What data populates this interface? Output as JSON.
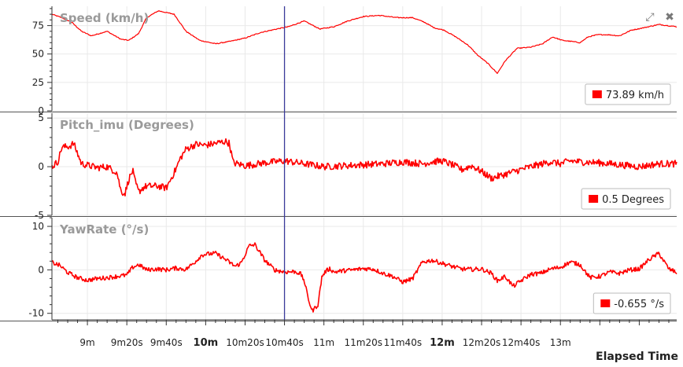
{
  "colors": {
    "series": "#ff0000",
    "cursor": "#3a3a9a",
    "axis": "#333333",
    "grid": "#e9e9e9",
    "panel_title": "#9a9a9a"
  },
  "controls": {
    "expand_icon": "expand-icon",
    "close_icon": "close-icon",
    "expand_glyph": "⤢",
    "close_glyph": "✖"
  },
  "x_axis": {
    "label": "Elapsed Time",
    "range_s": [
      522,
      839
    ],
    "ticks": [
      {
        "t": 540,
        "label": "9m",
        "major": false
      },
      {
        "t": 560,
        "label": "9m20s",
        "major": false
      },
      {
        "t": 580,
        "label": "9m40s",
        "major": false
      },
      {
        "t": 600,
        "label": "10m",
        "major": true
      },
      {
        "t": 620,
        "label": "10m20s",
        "major": false
      },
      {
        "t": 640,
        "label": "10m40s",
        "major": false
      },
      {
        "t": 660,
        "label": "11m",
        "major": false
      },
      {
        "t": 680,
        "label": "11m20s",
        "major": false
      },
      {
        "t": 700,
        "label": "11m40s",
        "major": false
      },
      {
        "t": 720,
        "label": "12m",
        "major": true
      },
      {
        "t": 740,
        "label": "12m20s",
        "major": false
      },
      {
        "t": 760,
        "label": "12m40s",
        "major": false
      },
      {
        "t": 780,
        "label": "13m",
        "major": false
      }
    ],
    "minor_step_s": 5
  },
  "cursor": {
    "t": 640
  },
  "chart_data": [
    {
      "type": "line",
      "title": "Speed (km/h)",
      "unit": "km/h",
      "readout": "73.89 km/h",
      "ylim": [
        0,
        92
      ],
      "yticks": [
        0,
        25,
        50,
        75
      ],
      "noise": 0.4,
      "x": [
        522,
        527,
        532,
        537,
        542,
        550,
        557,
        561,
        566,
        570,
        576,
        584,
        590,
        597,
        605,
        612,
        620,
        628,
        636,
        642,
        650,
        658,
        665,
        672,
        680,
        688,
        697,
        705,
        711,
        716,
        721,
        727,
        733,
        738,
        743,
        748,
        752,
        758,
        765,
        771,
        776,
        781,
        786,
        790,
        794,
        799,
        804,
        810,
        816,
        822,
        830,
        839
      ],
      "y": [
        85,
        82,
        78,
        70,
        66,
        70,
        63,
        62,
        68,
        82,
        88,
        85,
        70,
        62,
        59,
        61,
        64,
        69,
        72,
        74,
        79,
        72,
        74,
        79,
        83,
        84,
        82,
        82,
        78,
        73,
        71,
        65,
        58,
        49,
        42,
        33,
        44,
        55,
        56,
        59,
        65,
        62,
        61,
        60,
        65,
        67,
        67,
        66,
        71,
        73,
        76,
        74
      ]
    },
    {
      "type": "line",
      "title": "Pitch_imu (Degrees)",
      "unit": "Degrees",
      "readout": "0.5 Degrees",
      "ylim": [
        -5,
        5.5
      ],
      "yticks": [
        -5,
        0,
        5
      ],
      "noise": 0.35,
      "x": [
        522,
        525,
        527,
        531,
        533,
        537,
        545,
        550,
        555,
        557,
        559,
        561,
        563,
        564,
        566,
        568,
        570,
        576,
        580,
        585,
        587,
        590,
        595,
        600,
        605,
        610,
        612,
        614,
        620,
        630,
        640,
        650,
        660,
        670,
        680,
        690,
        700,
        710,
        715,
        720,
        725,
        730,
        735,
        740,
        745,
        750,
        758,
        765,
        775,
        780,
        785,
        790,
        800,
        810,
        820,
        830,
        839
      ],
      "y": [
        0,
        0.5,
        2,
        2.1,
        2.4,
        0.3,
        -0.1,
        0,
        -0.6,
        -2.5,
        -2.8,
        -1.3,
        -0.4,
        -1.4,
        -2.6,
        -2.2,
        -2.0,
        -2.0,
        -2.2,
        -0.2,
        0.8,
        1.8,
        2.3,
        2.2,
        2.4,
        2.6,
        2.4,
        0.4,
        0.1,
        0.4,
        0.6,
        0.3,
        0.0,
        0.1,
        0.2,
        0.3,
        0.5,
        0.3,
        0.5,
        0.6,
        0.2,
        -0.3,
        0.1,
        -0.5,
        -1.2,
        -0.9,
        -0.4,
        0.0,
        0.5,
        0.3,
        0.6,
        0.5,
        0.4,
        0.2,
        0.0,
        0.3,
        0.3
      ]
    },
    {
      "type": "line",
      "title": "YawRate (°/s)",
      "unit": "°/s",
      "readout": "-0.655 °/s",
      "ylim": [
        -11.5,
        12
      ],
      "yticks": [
        -10,
        0,
        10
      ],
      "noise": 0.5,
      "x": [
        522,
        526,
        530,
        535,
        540,
        545,
        550,
        555,
        560,
        563,
        566,
        570,
        575,
        580,
        585,
        590,
        595,
        598,
        600,
        605,
        610,
        615,
        618,
        620,
        622,
        625,
        630,
        635,
        640,
        645,
        648,
        650,
        652,
        654,
        657,
        659,
        661,
        663,
        665,
        670,
        675,
        680,
        685,
        690,
        695,
        700,
        705,
        710,
        715,
        720,
        725,
        730,
        735,
        740,
        745,
        748,
        752,
        756,
        760,
        765,
        770,
        775,
        780,
        785,
        790,
        795,
        800,
        805,
        810,
        815,
        820,
        825,
        830,
        835,
        839
      ],
      "y": [
        1.7,
        1.0,
        -0.6,
        -1.8,
        -2.4,
        -2.0,
        -1.8,
        -1.5,
        -1.2,
        0.6,
        1.2,
        0.0,
        0.2,
        0.0,
        0.4,
        0.1,
        2.0,
        3.4,
        3.6,
        3.8,
        2.4,
        0.8,
        1.6,
        3.5,
        5.5,
        5.8,
        2.2,
        0.0,
        -0.5,
        -0.4,
        -0.8,
        -2.5,
        -6.5,
        -9.5,
        -8.0,
        -1.5,
        -0.3,
        0.3,
        -0.5,
        -0.2,
        0.0,
        0.3,
        0.2,
        -0.8,
        -1.5,
        -2.8,
        -2.0,
        1.8,
        2.2,
        1.5,
        0.8,
        0.2,
        0.1,
        0.2,
        -0.8,
        -2.5,
        -1.5,
        -3.8,
        -2.5,
        -1.0,
        -0.8,
        0.2,
        0.6,
        1.8,
        1.2,
        -1.8,
        -1.5,
        -0.5,
        -0.8,
        0.0,
        0.2,
        2.4,
        3.8,
        0.2,
        -0.6
      ]
    }
  ]
}
